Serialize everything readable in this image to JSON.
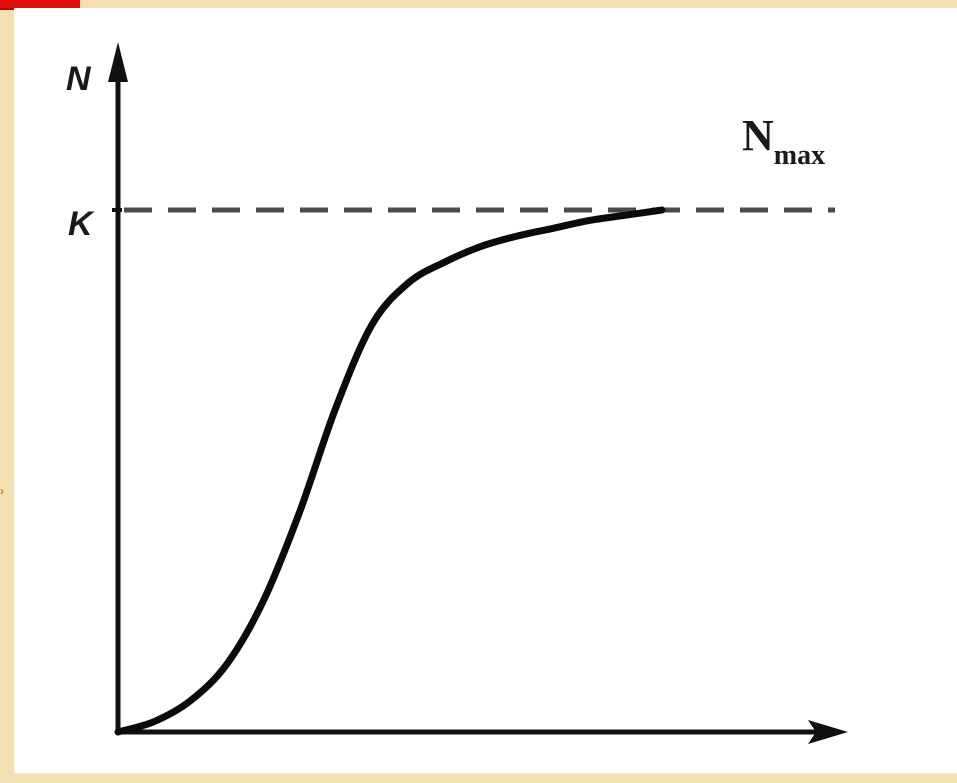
{
  "chart_data": {
    "type": "line",
    "y_axis_label": "N",
    "k_tick_label": "K",
    "asymptote_label": {
      "main": "N",
      "sub": "max"
    },
    "asymptote_value": 1.0,
    "xlim": [
      0,
      10
    ],
    "ylim": [
      0,
      1.1
    ],
    "grid": false,
    "series": [
      {
        "x": [
          0,
          0.5,
          1,
          1.5,
          2,
          2.5,
          3,
          3.5,
          4,
          4.5,
          5,
          5.5,
          6,
          6.5,
          7,
          7.5
        ],
        "y": [
          0.0,
          0.02,
          0.06,
          0.13,
          0.25,
          0.42,
          0.62,
          0.78,
          0.86,
          0.9,
          0.93,
          0.95,
          0.965,
          0.98,
          0.99,
          1.0
        ]
      }
    ]
  },
  "colors": {
    "background": "#f3dfb0",
    "panel": "#ffffff",
    "curve": "#0b0b0b",
    "axes": "#101010",
    "dashes": "#4a4a4a",
    "accent": "#e01010"
  }
}
